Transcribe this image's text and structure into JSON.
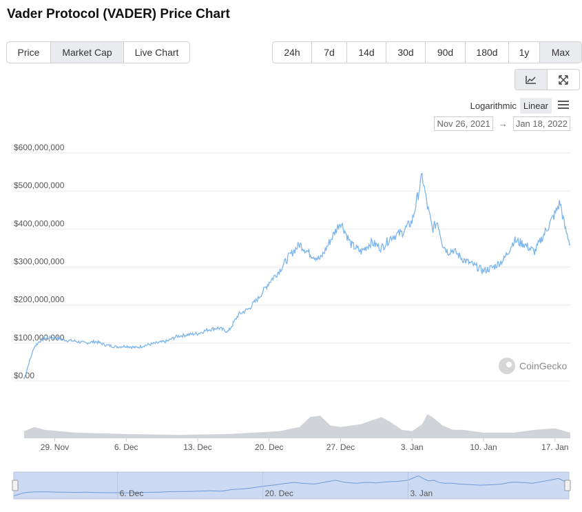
{
  "title": "Vader Protocol (VADER) Price Chart",
  "view_tabs": [
    {
      "label": "Price",
      "active": false
    },
    {
      "label": "Market Cap",
      "active": true
    },
    {
      "label": "Live Chart",
      "active": false
    }
  ],
  "range_tabs": [
    {
      "label": "24h",
      "active": false
    },
    {
      "label": "7d",
      "active": false
    },
    {
      "label": "14d",
      "active": false
    },
    {
      "label": "30d",
      "active": false
    },
    {
      "label": "90d",
      "active": false
    },
    {
      "label": "180d",
      "active": false
    },
    {
      "label": "1y",
      "active": false
    },
    {
      "label": "Max",
      "active": true
    }
  ],
  "scale": {
    "logarithmic": "Logarithmic",
    "linear": "Linear",
    "active": "Linear"
  },
  "date_range": {
    "from": "Nov 26, 2021",
    "arrow": "→",
    "to": "Jan 18, 2022"
  },
  "watermark": "CoinGecko",
  "colors": {
    "line": "#7cb5ec",
    "volume": "#d0d3d8",
    "navigator_fill": "#ccd9f2",
    "grid": "#ebebeb"
  },
  "chart_data": {
    "type": "line",
    "title": "Vader Protocol (VADER) Price Chart",
    "series_name": "Market Cap",
    "y_ticks": [
      "$0.00",
      "$100,000,000",
      "$200,000,000",
      "$300,000,000",
      "$400,000,000",
      "$500,000,000",
      "$600,000,000"
    ],
    "ylim": [
      0,
      600000000
    ],
    "x_ticks": [
      "29. Nov",
      "6. Dec",
      "13. Dec",
      "20. Dec",
      "27. Dec",
      "3. Jan",
      "10. Jan",
      "17. Jan"
    ],
    "x_tick_days": [
      3,
      10,
      17,
      24,
      31,
      38,
      45,
      52
    ],
    "xlim_days": [
      0,
      53.5
    ],
    "x_day0": "Nov 26, 2021",
    "navigator_ticks": [
      "6. Dec",
      "20. Dec",
      "3. Jan"
    ],
    "navigator_tick_days": [
      10,
      24,
      38
    ],
    "market_cap": {
      "days": [
        0,
        0.5,
        1,
        1.5,
        2,
        3,
        4,
        5,
        6,
        7,
        8,
        9,
        10,
        11,
        12,
        13,
        14,
        15,
        16,
        17,
        18,
        19,
        20,
        21,
        22,
        23,
        24,
        25,
        26,
        27,
        28,
        29,
        30,
        31,
        32,
        33,
        34,
        35,
        36,
        37,
        38,
        39,
        39.5,
        40,
        40.5,
        41,
        41.5,
        42,
        43,
        44,
        45,
        46,
        47,
        48,
        49,
        50,
        51,
        52,
        52.5,
        53,
        53.5
      ],
      "values": [
        5000000,
        50000000,
        90000000,
        105000000,
        112000000,
        115000000,
        108000000,
        105000000,
        100000000,
        104000000,
        95000000,
        90000000,
        92000000,
        88000000,
        95000000,
        100000000,
        105000000,
        118000000,
        122000000,
        125000000,
        135000000,
        140000000,
        130000000,
        175000000,
        190000000,
        220000000,
        260000000,
        290000000,
        330000000,
        360000000,
        335000000,
        320000000,
        370000000,
        420000000,
        360000000,
        340000000,
        365000000,
        350000000,
        380000000,
        390000000,
        420000000,
        540000000,
        460000000,
        400000000,
        420000000,
        360000000,
        340000000,
        345000000,
        320000000,
        305000000,
        290000000,
        300000000,
        320000000,
        370000000,
        360000000,
        340000000,
        390000000,
        440000000,
        470000000,
        400000000,
        360000000
      ]
    },
    "volume": {
      "days": [
        0,
        1,
        2,
        5,
        10,
        15,
        20,
        25,
        27,
        28,
        29,
        30,
        31,
        33,
        35,
        36,
        37,
        38,
        39,
        39.5,
        40,
        41,
        42,
        43,
        44,
        45,
        48,
        50,
        52,
        53.5
      ],
      "values": [
        0.25,
        0.4,
        0.3,
        0.2,
        0.15,
        0.12,
        0.15,
        0.25,
        0.4,
        0.75,
        0.8,
        0.45,
        0.4,
        0.5,
        0.75,
        0.55,
        0.3,
        0.25,
        0.5,
        0.85,
        0.75,
        0.45,
        0.3,
        0.3,
        0.25,
        0.2,
        0.2,
        0.3,
        0.35,
        0.2
      ]
    }
  }
}
